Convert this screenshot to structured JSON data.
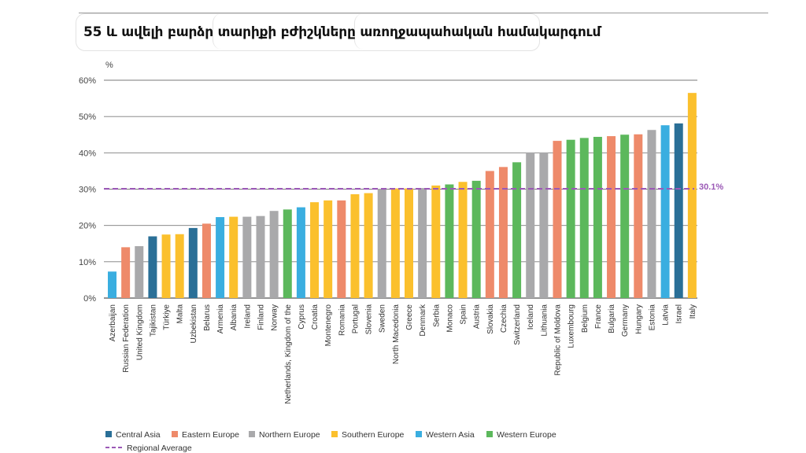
{
  "slide": {
    "title": "55 և ավելի բարձր  տարիքի բժիշկները առողջապահական համակարգում"
  },
  "chart_data": {
    "type": "bar",
    "ylabel": "%",
    "ylim": [
      0,
      60
    ],
    "yticks": [
      "0%",
      "10%",
      "20%",
      "30%",
      "40%",
      "50%",
      "60%"
    ],
    "grid": true,
    "categories": [
      "Azerbaijan",
      "Russian Federation",
      "United Kingdom",
      "Tajikistan",
      "Türkiye",
      "Malta",
      "Uzbekistan",
      "Belarus",
      "Armenia",
      "Albania",
      "Ireland",
      "Finland",
      "Norway",
      "Netherlands, Kingdom of the",
      "Cyprus",
      "Croatia",
      "Montenegro",
      "Romania",
      "Portugal",
      "Slovenia",
      "Sweden",
      "North Macedonia",
      "Greece",
      "Denmark",
      "Serbia",
      "Monaco",
      "Spain",
      "Austria",
      "Slovakia",
      "Czechia",
      "Switzerland",
      "Iceland",
      "Lithuania",
      "Republic of Moldova",
      "Luxembourg",
      "Belgium",
      "France",
      "Bulgaria",
      "Germany",
      "Hungary",
      "Estonia",
      "Latvia",
      "Israel",
      "Italy"
    ],
    "values": [
      7.3,
      14,
      14.3,
      17,
      17.5,
      17.6,
      19.3,
      20.5,
      22.3,
      22.4,
      22.4,
      22.6,
      24,
      24.4,
      25,
      26.4,
      26.9,
      26.9,
      28.6,
      28.9,
      30.1,
      30.2,
      30.2,
      30.3,
      31,
      31.3,
      32,
      32.3,
      35,
      36.1,
      37.4,
      40.1,
      40.1,
      43.3,
      43.6,
      44.1,
      44.4,
      44.6,
      45,
      45.1,
      46.3,
      47.6,
      48.1,
      56.5
    ],
    "groups": [
      "Western Asia",
      "Eastern Europe",
      "Northern Europe",
      "Central Asia",
      "Southern Europe",
      "Southern Europe",
      "Central Asia",
      "Eastern Europe",
      "Western Asia",
      "Southern Europe",
      "Northern Europe",
      "Northern Europe",
      "Northern Europe",
      "Western Europe",
      "Western Asia",
      "Southern Europe",
      "Southern Europe",
      "Eastern Europe",
      "Southern Europe",
      "Southern Europe",
      "Northern Europe",
      "Southern Europe",
      "Southern Europe",
      "Northern Europe",
      "Southern Europe",
      "Western Europe",
      "Southern Europe",
      "Western Europe",
      "Eastern Europe",
      "Eastern Europe",
      "Western Europe",
      "Northern Europe",
      "Northern Europe",
      "Eastern Europe",
      "Western Europe",
      "Western Europe",
      "Western Europe",
      "Eastern Europe",
      "Western Europe",
      "Eastern Europe",
      "Northern Europe",
      "Western Asia",
      "Central Asia",
      "Southern Europe"
    ],
    "legend": [
      {
        "name": "Central Asia",
        "color": "#2a6f97"
      },
      {
        "name": "Eastern Europe",
        "color": "#ee8a6a"
      },
      {
        "name": "Northern Europe",
        "color": "#a9a9ab"
      },
      {
        "name": "Southern Europe",
        "color": "#fbc02d"
      },
      {
        "name": "Western Asia",
        "color": "#3aaee0"
      },
      {
        "name": "Western Europe",
        "color": "#5cb85c"
      }
    ],
    "reference_line": {
      "label": "Regional Average",
      "value": 30.1,
      "value_label": "30.1%",
      "color": "#9b59b6"
    },
    "legend_placement": "bottom"
  }
}
